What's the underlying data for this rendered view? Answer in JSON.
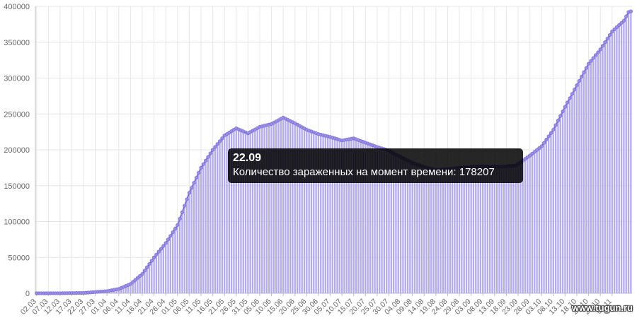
{
  "chart_data": {
    "type": "bar",
    "title": "",
    "xlabel": "",
    "ylabel": "",
    "ylim": [
      0,
      400000
    ],
    "yticks": [
      "0",
      "50000",
      "100000",
      "150000",
      "200000",
      "250000",
      "300000",
      "350000",
      "400000"
    ],
    "grid": true,
    "bar_color": "#b3aaf0",
    "line_color": "#7b6fd6",
    "x_tick_labels": [
      "02.03",
      "07.03",
      "12.03",
      "17.03",
      "22.03",
      "27.03",
      "01.04",
      "06.04",
      "11.04",
      "16.04",
      "21.04",
      "26.04",
      "01.05",
      "06.05",
      "11.05",
      "16.05",
      "21.05",
      "26.05",
      "31.05",
      "05.06",
      "10.06",
      "15.06",
      "20.06",
      "25.06",
      "30.06",
      "05.07",
      "10.07",
      "15.07",
      "20.07",
      "25.07",
      "30.07",
      "04.08",
      "09.08",
      "14.08",
      "19.08",
      "24.08",
      "29.08",
      "03.09",
      "08.09",
      "13.09",
      "18.09",
      "23.09",
      "28.09",
      "03.10",
      "08.10",
      "13.10",
      "18.10",
      "23.10",
      "28.10",
      "02.11"
    ],
    "anchors": [
      [
        "02.03",
        0
      ],
      [
        "12.03",
        50
      ],
      [
        "22.03",
        500
      ],
      [
        "01.04",
        3000
      ],
      [
        "06.04",
        6000
      ],
      [
        "11.04",
        13000
      ],
      [
        "16.04",
        27000
      ],
      [
        "21.04",
        50000
      ],
      [
        "26.04",
        70000
      ],
      [
        "01.05",
        95000
      ],
      [
        "06.05",
        140000
      ],
      [
        "11.05",
        175000
      ],
      [
        "16.05",
        200000
      ],
      [
        "21.05",
        220000
      ],
      [
        "26.05",
        230000
      ],
      [
        "31.05",
        223000
      ],
      [
        "05.06",
        232000
      ],
      [
        "10.06",
        236000
      ],
      [
        "15.06",
        245000
      ],
      [
        "20.06",
        237000
      ],
      [
        "25.06",
        228000
      ],
      [
        "30.06",
        222000
      ],
      [
        "05.07",
        218000
      ],
      [
        "10.07",
        213000
      ],
      [
        "15.07",
        216000
      ],
      [
        "20.07",
        210000
      ],
      [
        "25.07",
        204000
      ],
      [
        "30.07",
        199000
      ],
      [
        "04.08",
        190000
      ],
      [
        "09.08",
        182000
      ],
      [
        "14.08",
        176000
      ],
      [
        "19.08",
        172000
      ],
      [
        "24.08",
        173000
      ],
      [
        "29.08",
        175000
      ],
      [
        "03.09",
        176000
      ],
      [
        "08.09",
        177000
      ],
      [
        "13.09",
        176000
      ],
      [
        "18.09",
        177000
      ],
      [
        "22.09",
        178207
      ],
      [
        "28.09",
        192000
      ],
      [
        "03.10",
        205000
      ],
      [
        "08.10",
        228000
      ],
      [
        "13.10",
        260000
      ],
      [
        "18.10",
        290000
      ],
      [
        "23.10",
        320000
      ],
      [
        "28.10",
        340000
      ],
      [
        "02.11",
        365000
      ],
      [
        "07.11",
        380000
      ],
      [
        "09.11",
        392000
      ],
      [
        "10.11",
        393000
      ]
    ]
  },
  "tooltip": {
    "title": "22.09",
    "label": "Количество зараженных на момент времени: 178207"
  },
  "watermark": "www.tugun.ru"
}
